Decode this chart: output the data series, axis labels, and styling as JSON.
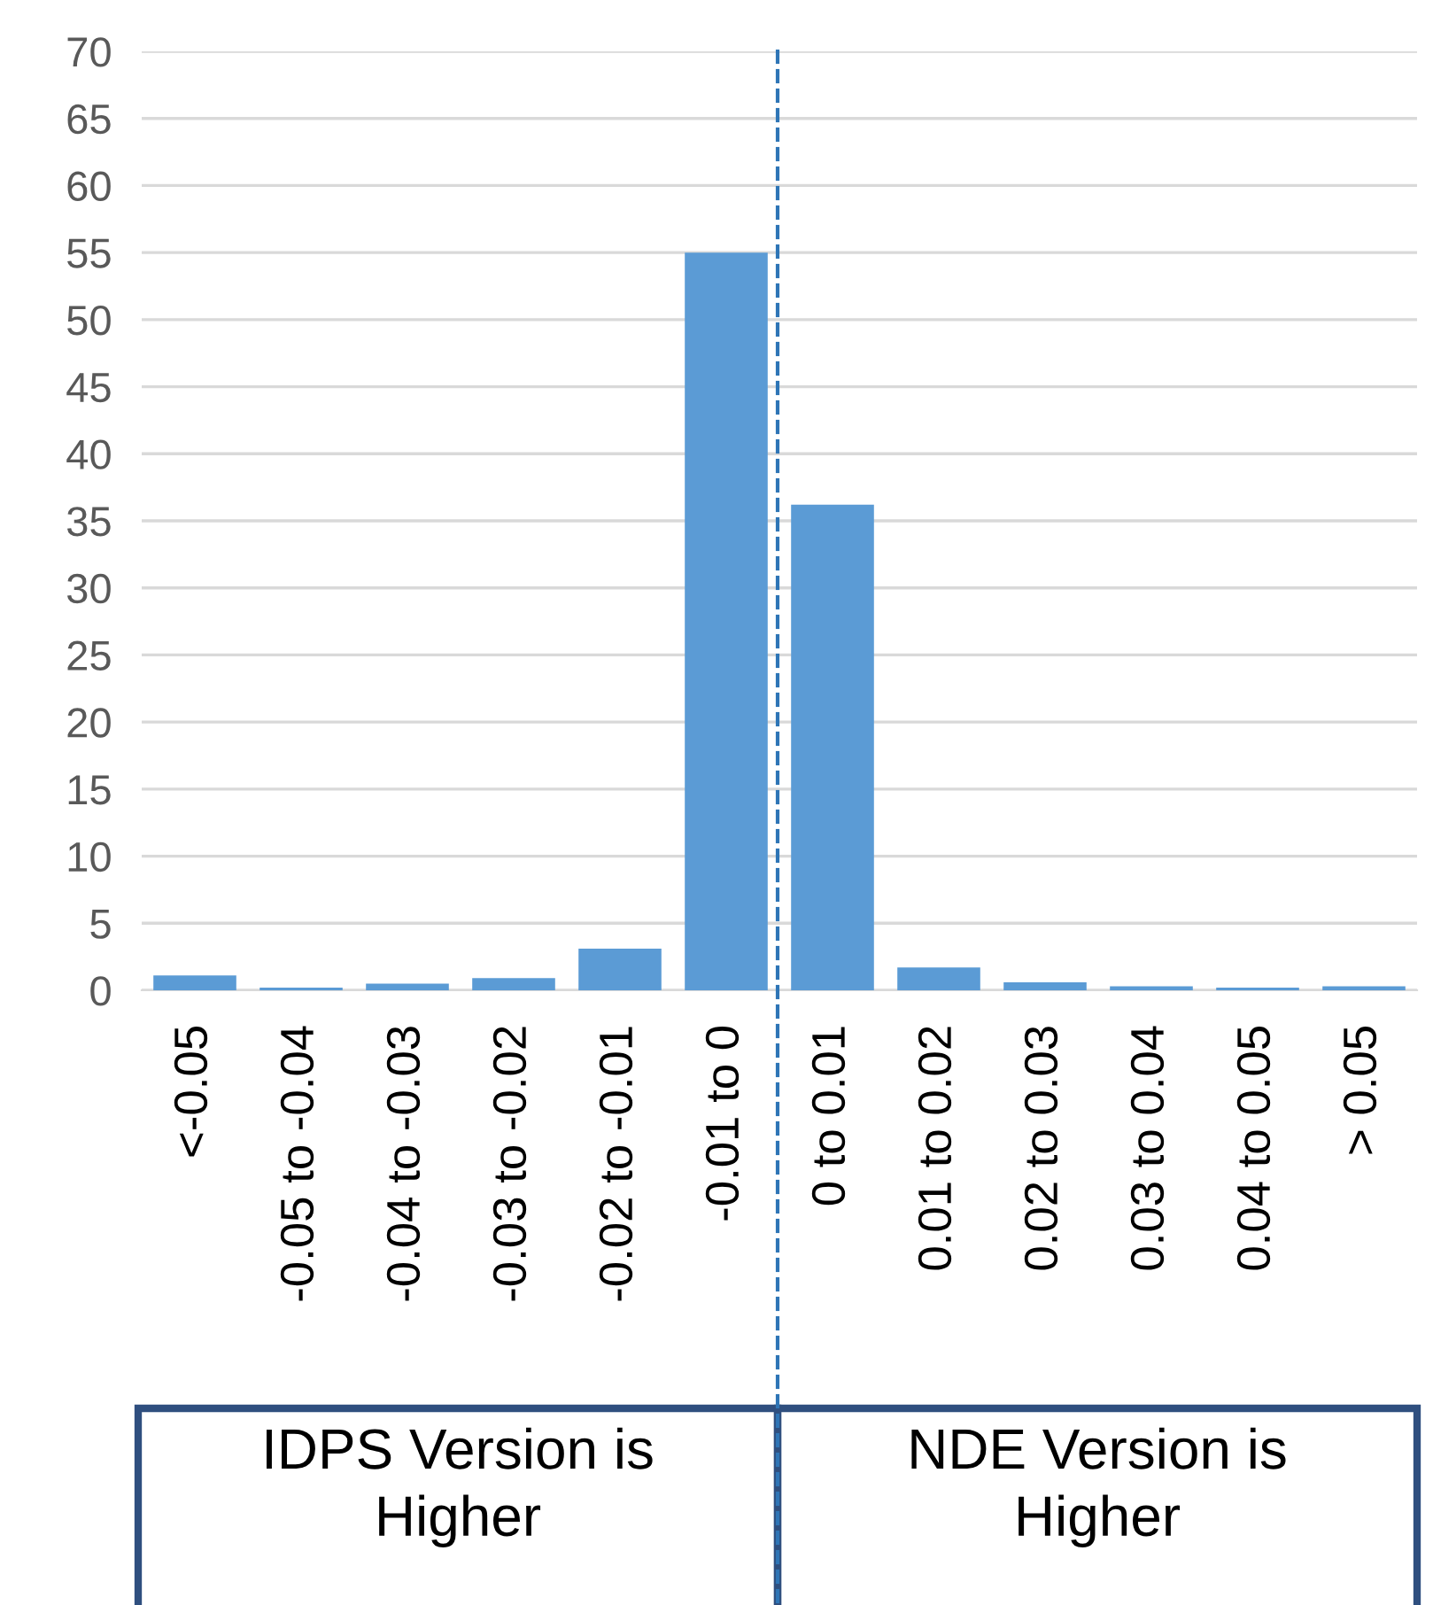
{
  "chart_data": {
    "type": "bar",
    "categories": [
      "<-0.05",
      "-0.05 to -0.04",
      "-0.04 to -0.03",
      "-0.03 to -0.02",
      "-0.02 to -0.01",
      "-0.01 to 0",
      "0 to 0.01",
      "0.01 to 0.02",
      "0.02 to 0.03",
      "0.03 to 0.04",
      "0.04 to 0.05",
      "> 0.05"
    ],
    "values": [
      1.1,
      0.2,
      0.5,
      0.9,
      3.1,
      55,
      36.2,
      1.7,
      0.6,
      0.3,
      0.2,
      0.3
    ],
    "color": "#5b9bd5",
    "ylim": [
      0,
      70
    ],
    "yticks": [
      0,
      5,
      10,
      15,
      20,
      25,
      30,
      35,
      40,
      45,
      50,
      55,
      60,
      65,
      70
    ],
    "grid": "y",
    "annotations": [
      "IDPS Version is\nHigher",
      "NDE Version is\nHigher"
    ]
  }
}
